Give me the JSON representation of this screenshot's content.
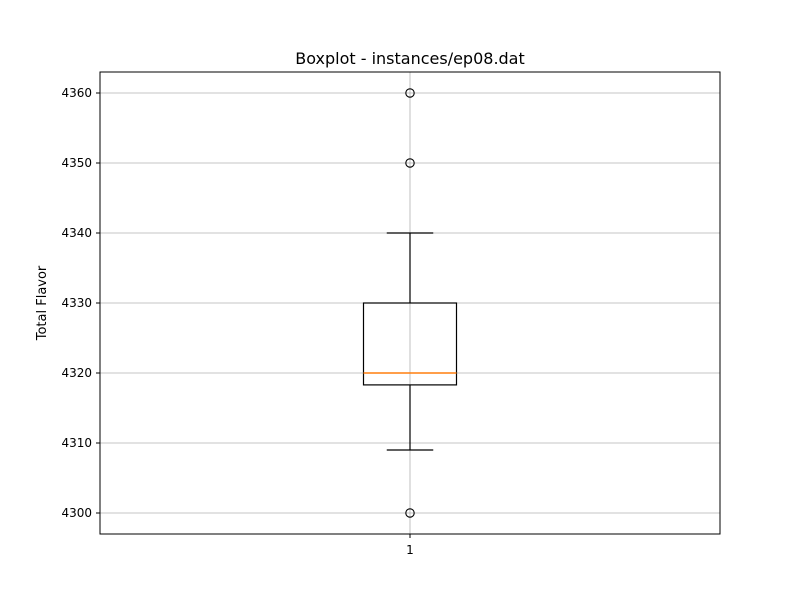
{
  "chart_data": {
    "type": "boxplot",
    "title": "Boxplot - instances/ep08.dat",
    "xlabel": "",
    "ylabel": "Total Flavor",
    "categories": [
      "1"
    ],
    "ylim": [
      4297,
      4363
    ],
    "yticks": [
      4300,
      4310,
      4320,
      4330,
      4340,
      4350,
      4360
    ],
    "grid": true,
    "boxes": [
      {
        "category": "1",
        "whisker_low": 4309,
        "q1": 4318.3,
        "median": 4320,
        "q3": 4330,
        "whisker_high": 4340,
        "outliers": [
          4300,
          4350,
          4360
        ]
      }
    ],
    "colors": {
      "box": "#000000",
      "median": "#ff7f0e",
      "grid": "#b0b0b0"
    }
  }
}
